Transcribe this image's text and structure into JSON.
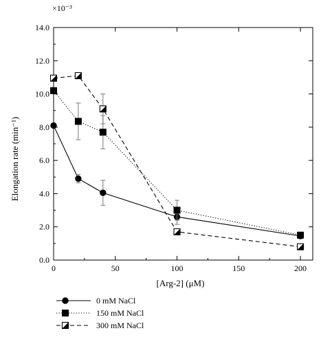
{
  "chart_data": {
    "type": "line",
    "xlabel": "[Arg-2] (μM)",
    "ylabel": "Elongation rate (min⁻¹)",
    "y_multiplier": "×10⁻³",
    "xlim": [
      0,
      210
    ],
    "ylim": [
      0,
      14
    ],
    "x_ticks": [
      0,
      50,
      100,
      150,
      200
    ],
    "x_tick_labels": [
      "0",
      "50",
      "100",
      "150",
      "200"
    ],
    "y_ticks": [
      0,
      2,
      4,
      6,
      8,
      10,
      12,
      14
    ],
    "y_tick_labels": [
      "0.0",
      "2.0",
      "4.0",
      "6.0",
      "8.0",
      "10.0",
      "12.0",
      "14.0"
    ],
    "grid": false,
    "legend_position": "below-left",
    "series": [
      {
        "name": "0 mM NaCl",
        "marker": "circle",
        "line": "solid",
        "x": [
          0,
          20,
          40,
          100,
          200
        ],
        "y": [
          8.1,
          4.9,
          4.05,
          2.6,
          1.45
        ],
        "err": [
          0,
          0.25,
          0.75,
          0.45,
          0
        ]
      },
      {
        "name": "150 mM NaCl",
        "marker": "square",
        "line": "dotted",
        "x": [
          0,
          20,
          40,
          100,
          200
        ],
        "y": [
          10.2,
          8.35,
          7.7,
          3.0,
          1.5
        ],
        "err": [
          0,
          1.1,
          1.0,
          0.6,
          0
        ]
      },
      {
        "name": "300 mM NaCl",
        "marker": "half-square",
        "line": "dashed",
        "x": [
          0,
          20,
          40,
          100,
          200
        ],
        "y": [
          10.95,
          11.1,
          9.1,
          1.7,
          0.8
        ],
        "err": [
          0,
          0,
          0.9,
          0,
          0
        ]
      }
    ]
  }
}
